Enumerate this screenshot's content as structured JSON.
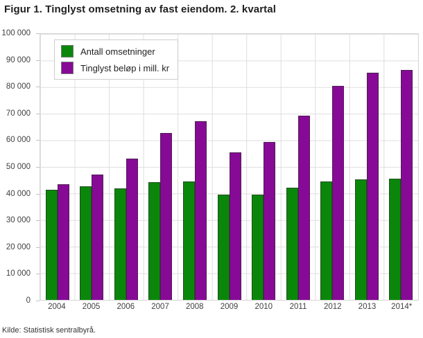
{
  "title": "Figur 1. Tinglyst omsetning av fast eiendom. 2. kvartal",
  "source": "Kilde: Statistisk sentralbyrå.",
  "colors": {
    "green": "#0a870a",
    "purple": "#870a96",
    "grid": "#dedede",
    "axis_text": "#404040",
    "title_text": "#1f1f1f"
  },
  "chart_data": {
    "type": "bar",
    "title": "Figur 1. Tinglyst omsetning av fast eiendom. 2. kvartal",
    "categories": [
      "2004",
      "2005",
      "2006",
      "2007",
      "2008",
      "2009",
      "2010",
      "2011",
      "2012",
      "2013",
      "2014*"
    ],
    "series": [
      {
        "name": "Antall omsetninger",
        "color_key": "green",
        "values": [
          41500,
          42600,
          41900,
          44300,
          44500,
          39500,
          39700,
          42100,
          44600,
          45200,
          45500
        ]
      },
      {
        "name": "Tinglyst beløp i mill. kr",
        "color_key": "purple",
        "values": [
          43400,
          47100,
          53000,
          62700,
          67300,
          55500,
          59300,
          69300,
          80500,
          85400,
          86400
        ]
      }
    ],
    "xlabel": "",
    "ylabel": "",
    "ylim": [
      0,
      100000
    ],
    "ytick_step": 10000,
    "ytick_labels_top_to_bottom": [
      "100 000",
      "90 000",
      "80 000",
      "70 000",
      "60 000",
      "50 000",
      "40 000",
      "30 000",
      "20 000",
      "10 000",
      "0"
    ],
    "grid": true,
    "legend_position": "top-left"
  }
}
